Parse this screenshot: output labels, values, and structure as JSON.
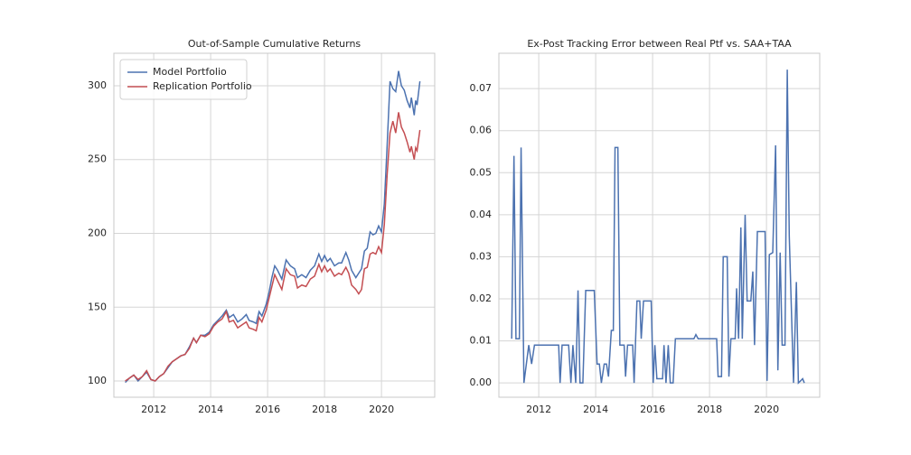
{
  "chart_data": [
    {
      "type": "line",
      "title": "Out-of-Sample Cumulative Returns",
      "x": [
        2011.0,
        2011.15,
        2011.3,
        2011.45,
        2011.6,
        2011.75,
        2011.9,
        2012.05,
        2012.2,
        2012.35,
        2012.5,
        2012.65,
        2012.8,
        2012.95,
        2013.1,
        2013.25,
        2013.4,
        2013.5,
        2013.65,
        2013.8,
        2013.95,
        2014.1,
        2014.25,
        2014.4,
        2014.55,
        2014.65,
        2014.8,
        2014.95,
        2015.1,
        2015.25,
        2015.35,
        2015.5,
        2015.6,
        2015.7,
        2015.8,
        2015.95,
        2016.05,
        2016.15,
        2016.25,
        2016.35,
        2016.5,
        2016.65,
        2016.8,
        2016.95,
        2017.05,
        2017.2,
        2017.35,
        2017.5,
        2017.65,
        2017.8,
        2017.9,
        2018.0,
        2018.1,
        2018.2,
        2018.35,
        2018.5,
        2018.6,
        2018.75,
        2018.85,
        2018.95,
        2019.1,
        2019.2,
        2019.3,
        2019.4,
        2019.5,
        2019.6,
        2019.7,
        2019.8,
        2019.9,
        2020.0,
        2020.1,
        2020.2,
        2020.3,
        2020.4,
        2020.5,
        2020.6,
        2020.7,
        2020.8,
        2020.9,
        2021.0,
        2021.05,
        2021.15,
        2021.2,
        2021.25,
        2021.35
      ],
      "series": [
        {
          "name": "Model Portfolio",
          "color": "#4c72b0",
          "values": [
            99,
            102,
            104,
            100,
            103,
            106,
            101,
            100,
            103,
            105,
            109,
            113,
            115,
            117,
            118,
            123,
            129,
            126,
            131,
            131,
            133,
            138,
            141,
            144,
            148,
            143,
            145,
            140,
            142,
            145,
            141,
            140,
            139,
            147,
            144,
            152,
            160,
            170,
            178,
            175,
            169,
            182,
            178,
            176,
            170,
            172,
            170,
            175,
            178,
            186,
            181,
            185,
            181,
            183,
            178,
            180,
            180,
            187,
            182,
            175,
            170,
            173,
            176,
            188,
            190,
            201,
            199,
            200,
            205,
            201,
            220,
            260,
            303,
            298,
            296,
            310,
            300,
            297,
            290,
            285,
            292,
            280,
            290,
            287,
            303
          ]
        },
        {
          "name": "Replication Portfolio",
          "color": "#c44e52",
          "values": [
            100,
            102,
            104,
            101,
            103,
            107,
            101,
            100,
            103,
            105,
            110,
            113,
            115,
            117,
            118,
            122,
            129,
            126,
            131,
            130,
            132,
            137,
            140,
            142,
            147,
            140,
            141,
            136,
            138,
            140,
            136,
            135,
            134,
            143,
            140,
            148,
            156,
            164,
            172,
            168,
            162,
            176,
            172,
            171,
            163,
            165,
            164,
            169,
            171,
            179,
            174,
            178,
            174,
            176,
            171,
            173,
            172,
            177,
            173,
            165,
            162,
            159,
            162,
            176,
            177,
            186,
            187,
            186,
            191,
            187,
            206,
            240,
            268,
            276,
            268,
            282,
            272,
            268,
            262,
            255,
            259,
            250,
            258,
            256,
            270
          ]
        }
      ],
      "xlim": [
        2010.6,
        2021.87
      ],
      "ylim": [
        89,
        322
      ],
      "xticks": [
        2012,
        2014,
        2016,
        2018,
        2020
      ],
      "yticks": [
        100,
        150,
        200,
        250,
        300
      ],
      "grid": true,
      "legend": "upper left"
    },
    {
      "type": "line",
      "title": "Ex-Post Tracking Error between Real Ptf vs. SAA+TAA",
      "x": [
        2011.05,
        2011.13,
        2011.2,
        2011.32,
        2011.38,
        2011.48,
        2011.65,
        2011.75,
        2011.85,
        2012.7,
        2012.75,
        2012.82,
        2013.05,
        2013.13,
        2013.2,
        2013.3,
        2013.38,
        2013.45,
        2013.55,
        2013.65,
        2013.95,
        2014.05,
        2014.13,
        2014.2,
        2014.3,
        2014.38,
        2014.45,
        2014.55,
        2014.62,
        2014.68,
        2014.78,
        2014.85,
        2015.0,
        2015.05,
        2015.12,
        2015.3,
        2015.35,
        2015.45,
        2015.55,
        2015.6,
        2015.68,
        2015.95,
        2016.02,
        2016.08,
        2016.15,
        2016.35,
        2016.4,
        2016.47,
        2016.55,
        2016.62,
        2016.72,
        2016.8,
        2017.45,
        2017.52,
        2017.6,
        2018.25,
        2018.3,
        2018.42,
        2018.48,
        2018.62,
        2018.68,
        2018.75,
        2018.9,
        2018.95,
        2019.02,
        2019.1,
        2019.15,
        2019.25,
        2019.32,
        2019.45,
        2019.52,
        2019.58,
        2019.68,
        2019.95,
        2020.02,
        2020.1,
        2020.22,
        2020.32,
        2020.4,
        2020.48,
        2020.55,
        2020.65,
        2020.73,
        2020.8,
        2020.95,
        2021.05,
        2021.12,
        2021.2,
        2021.27,
        2021.33
      ],
      "series": [
        {
          "color": "#4c72b0",
          "values": [
            0.0105,
            0.054,
            0.0105,
            0.0105,
            0.056,
            0.0,
            0.009,
            0.0045,
            0.009,
            0.009,
            0.0,
            0.009,
            0.009,
            0.0,
            0.009,
            0.0,
            0.022,
            0.0,
            0.0,
            0.022,
            0.022,
            0.0045,
            0.0045,
            0.0,
            0.0045,
            0.0045,
            0.0015,
            0.0125,
            0.0125,
            0.056,
            0.056,
            0.009,
            0.009,
            0.0015,
            0.009,
            0.009,
            0.0,
            0.0195,
            0.0195,
            0.0105,
            0.0195,
            0.0195,
            0.0,
            0.009,
            0.001,
            0.001,
            0.009,
            0.0,
            0.009,
            0.0,
            0.0,
            0.0105,
            0.0105,
            0.0115,
            0.0105,
            0.0105,
            0.0015,
            0.0015,
            0.03,
            0.03,
            0.0015,
            0.0105,
            0.0105,
            0.0225,
            0.0105,
            0.037,
            0.0105,
            0.04,
            0.0195,
            0.0195,
            0.0265,
            0.009,
            0.036,
            0.036,
            0.0005,
            0.0305,
            0.031,
            0.0565,
            0.003,
            0.031,
            0.009,
            0.009,
            0.0745,
            0.035,
            0.0,
            0.024,
            0.0,
            0.0005,
            0.001,
            0.0
          ]
        }
      ],
      "xlim": [
        2010.6,
        2021.87
      ],
      "ylim": [
        -0.0034,
        0.0784
      ],
      "xticks": [
        2012,
        2014,
        2016,
        2018,
        2020
      ],
      "yticks": [
        {
          "value": 0,
          "label": "0.00"
        },
        {
          "value": 0.01,
          "label": "0.01"
        },
        {
          "value": 0.02,
          "label": "0.02"
        },
        {
          "value": 0.03,
          "label": "0.03"
        },
        {
          "value": 0.04,
          "label": "0.04"
        },
        {
          "value": 0.05,
          "label": "0.05"
        },
        {
          "value": 0.06,
          "label": "0.06"
        },
        {
          "value": 0.07,
          "label": "0.07"
        }
      ],
      "grid": true
    }
  ]
}
